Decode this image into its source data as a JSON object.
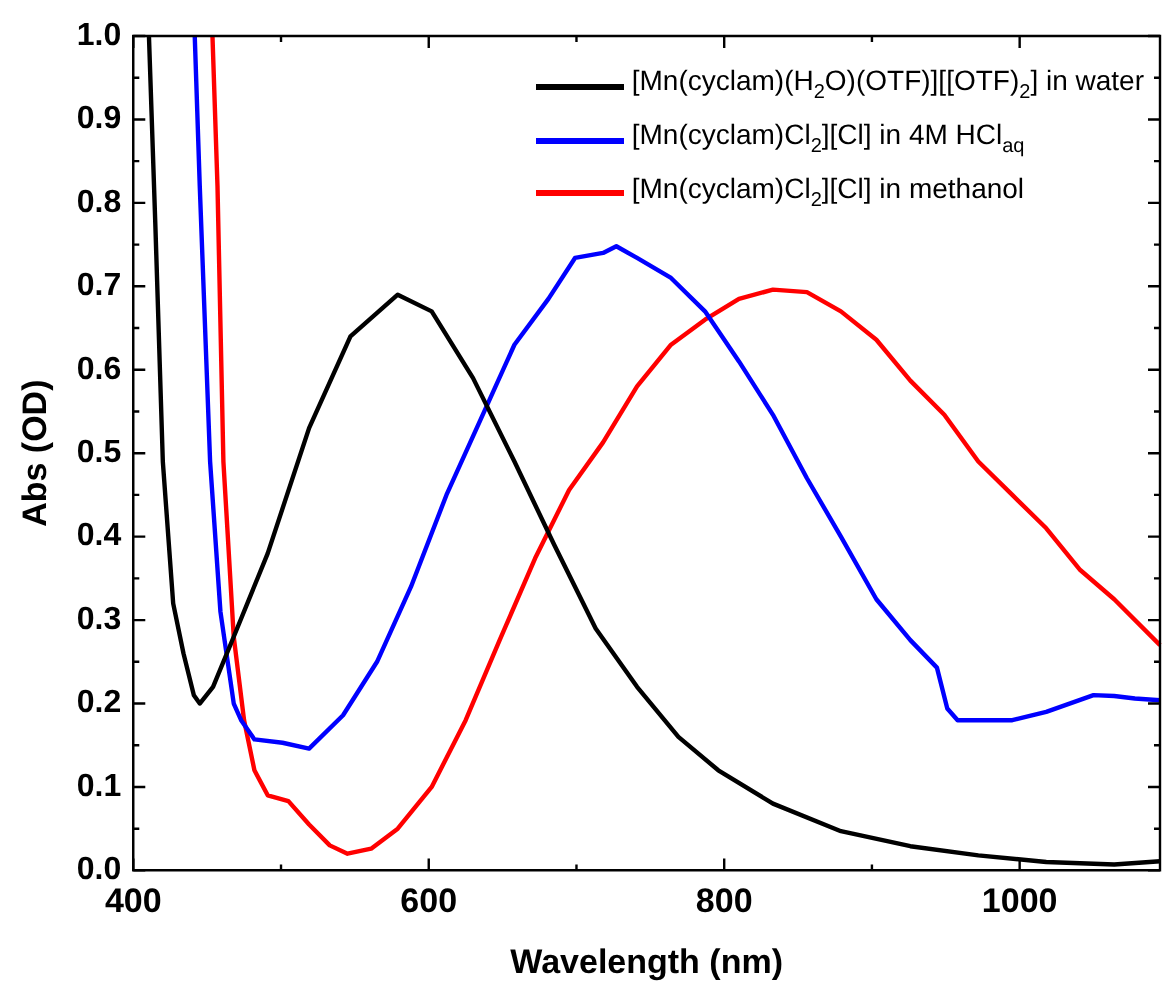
{
  "chart_data": {
    "type": "line",
    "xlabel": "Wavelength (nm)",
    "ylabel": "Abs (OD)",
    "xlim": [
      400,
      1095
    ],
    "xticks": [
      400,
      600,
      800,
      1000
    ],
    "ylim": [
      0,
      1
    ],
    "yticks": [
      {
        "value": 0,
        "label": "0.0"
      },
      0.1,
      0.2,
      0.3,
      0.4,
      0.5,
      0.6,
      0.7,
      0.8,
      0.9,
      {
        "value": 1,
        "label": "1.0"
      }
    ],
    "grid": false,
    "legend": "top right",
    "marker": "none",
    "line_style": "solid",
    "series": [
      {
        "name": "[Mn(cyclam)(H$_{2}$O)(OTF)][[OTF)$_{2}$] in water",
        "color": "#000000",
        "x": [
          410.6,
          415,
          420,
          427,
          434,
          441,
          445,
          454,
          468,
          491,
          519,
          547,
          579,
          602,
          630,
          658,
          685,
          713,
          741,
          769,
          796,
          833,
          879,
          926,
          972,
          1018,
          1064,
          1095
        ],
        "values": [
          1.0,
          0.77,
          0.49,
          0.32,
          0.26,
          0.21,
          0.2,
          0.22,
          0.28,
          0.38,
          0.53,
          0.64,
          0.69,
          0.67,
          0.59,
          0.49,
          0.39,
          0.29,
          0.22,
          0.16,
          0.12,
          0.08,
          0.047,
          0.029,
          0.018,
          0.01,
          0.007,
          0.011
        ]
      },
      {
        "name": "[Mn(cyclam)Cl$_{2}$][Cl] in 4M HCl$_{aq}$",
        "color": "#0000ff",
        "x": [
          441.6,
          445,
          452,
          459,
          468,
          473,
          482,
          501,
          519,
          542,
          565,
          588,
          612,
          635,
          658,
          681,
          699,
          718,
          727,
          741,
          764,
          787,
          810,
          833,
          856,
          879,
          903,
          926,
          944,
          951,
          958,
          995,
          1018,
          1050,
          1064,
          1078,
          1095
        ],
        "values": [
          1.0,
          0.82,
          0.49,
          0.31,
          0.2,
          0.18,
          0.157,
          0.153,
          0.146,
          0.186,
          0.25,
          0.34,
          0.45,
          0.54,
          0.63,
          0.685,
          0.734,
          0.74,
          0.748,
          0.734,
          0.71,
          0.67,
          0.61,
          0.546,
          0.47,
          0.4,
          0.325,
          0.276,
          0.243,
          0.194,
          0.18,
          0.18,
          0.19,
          0.21,
          0.209,
          0.206,
          0.204
        ]
      },
      {
        "name": "[Mn(cyclam)Cl$_{2}$][Cl] in methanol",
        "color": "#ff0000",
        "x": [
          453.6,
          457,
          461,
          468,
          475,
          482,
          491,
          505,
          519,
          533,
          545,
          561,
          579,
          602,
          625,
          648,
          672,
          695,
          718,
          741,
          764,
          787,
          810,
          833,
          856,
          879,
          903,
          926,
          949,
          972,
          995,
          1018,
          1041,
          1064,
          1095
        ],
        "values": [
          1.0,
          0.82,
          0.49,
          0.28,
          0.18,
          0.12,
          0.09,
          0.083,
          0.055,
          0.03,
          0.02,
          0.026,
          0.05,
          0.1,
          0.18,
          0.276,
          0.374,
          0.456,
          0.513,
          0.58,
          0.63,
          0.66,
          0.685,
          0.696,
          0.693,
          0.67,
          0.636,
          0.587,
          0.546,
          0.49,
          0.45,
          0.41,
          0.36,
          0.325,
          0.27
        ]
      }
    ]
  }
}
